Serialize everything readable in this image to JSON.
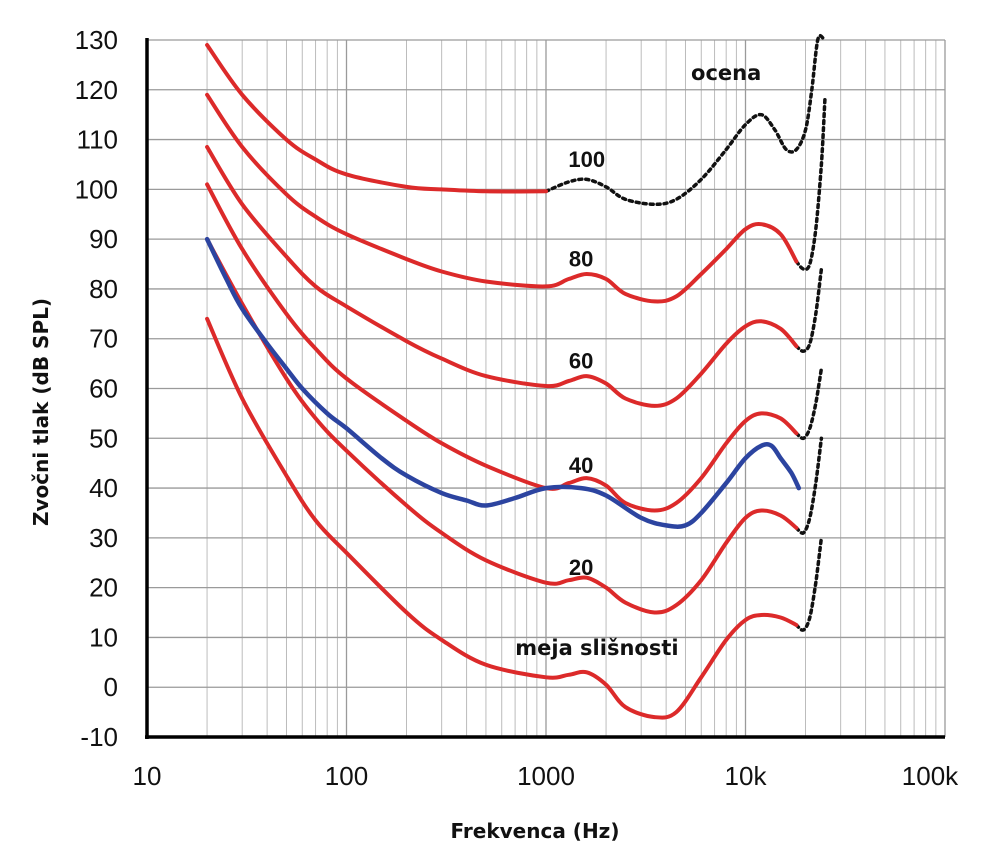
{
  "chart_data": {
    "type": "line",
    "xlabel": "Frekvenca (Hz)",
    "ylabel": "Zvočni tlak (dB SPL)",
    "x_scale": "log",
    "xlim": [
      10,
      100000
    ],
    "ylim": [
      -10,
      130
    ],
    "x_ticks": [
      10,
      100,
      1000,
      10000,
      100000
    ],
    "x_tick_labels": [
      "10",
      "100",
      "1000",
      "10k",
      "100k"
    ],
    "y_ticks": [
      -10,
      0,
      10,
      20,
      30,
      40,
      50,
      60,
      70,
      80,
      90,
      100,
      110,
      120,
      130
    ],
    "y_tick_labels": [
      "-10",
      "0",
      "10",
      "20",
      "30",
      "40",
      "50",
      "60",
      "70",
      "80",
      "90",
      "100",
      "110",
      "120",
      "130"
    ],
    "grid": true,
    "colors": {
      "equal_loudness": "#dc2a2a",
      "measured": "#2c44a0",
      "estimate": "#111111"
    },
    "series": [
      {
        "label": "100",
        "style": "red",
        "x": [
          20,
          30,
          50,
          70,
          100,
          200,
          300,
          500,
          1000
        ],
        "y": [
          129,
          119,
          110,
          106,
          103,
          100.5,
          100,
          99.6,
          99.6
        ]
      },
      {
        "label": "",
        "style": "dotted",
        "x": [
          1000,
          1300,
          1600,
          2000,
          2500,
          3500,
          4500,
          6000,
          8000,
          10000,
          12000,
          14000,
          16000,
          18000,
          20000,
          21500,
          23000,
          24500
        ],
        "y": [
          99.6,
          101.5,
          102,
          100.5,
          98,
          97,
          98,
          102,
          108,
          113,
          115,
          112,
          108,
          108,
          112,
          120,
          130,
          135
        ]
      },
      {
        "label": "80",
        "style": "red",
        "x": [
          20,
          30,
          50,
          70,
          100,
          200,
          300,
          500,
          1000,
          1300,
          1600,
          2000,
          2500,
          3500,
          4500,
          6000,
          8000,
          10000,
          12000,
          15000,
          18000
        ],
        "y": [
          119,
          108.5,
          99,
          94.5,
          91,
          86,
          83.5,
          81.5,
          80.5,
          82,
          83,
          82,
          79,
          77.5,
          78.5,
          83,
          88,
          92,
          93,
          91,
          85.5
        ]
      },
      {
        "label": "",
        "style": "dotted",
        "x": [
          18000,
          19500,
          21000,
          22500,
          24000,
          25000
        ],
        "y": [
          85.5,
          84,
          85,
          92,
          105,
          118
        ]
      },
      {
        "label": "60",
        "style": "red",
        "x": [
          20,
          30,
          50,
          70,
          100,
          200,
          300,
          500,
          1000,
          1300,
          1600,
          2000,
          2500,
          3500,
          4500,
          6000,
          8000,
          10000,
          12000,
          15000,
          18000
        ],
        "y": [
          108.5,
          97,
          86.5,
          80.5,
          76.5,
          69.5,
          66,
          62.5,
          60.5,
          61.5,
          62.5,
          61,
          58,
          56.5,
          58,
          63,
          69,
          72.5,
          73.5,
          72,
          68.5
        ]
      },
      {
        "label": "",
        "style": "dotted",
        "x": [
          18000,
          19500,
          21000,
          22500,
          24000
        ],
        "y": [
          68.5,
          67.5,
          69,
          75,
          84
        ]
      },
      {
        "label": "40",
        "style": "red",
        "x": [
          20,
          30,
          50,
          70,
          100,
          200,
          300,
          500,
          1000,
          1300,
          1600,
          2000,
          2500,
          3500,
          4500,
          6000,
          8000,
          10000,
          12000,
          15000,
          18000
        ],
        "y": [
          101,
          88,
          75,
          68,
          62,
          53.5,
          49,
          44.5,
          40,
          41,
          42,
          40.5,
          37,
          35.5,
          37,
          42,
          49,
          53.5,
          55,
          54,
          51
        ]
      },
      {
        "label": "",
        "style": "dotted",
        "x": [
          18000,
          19500,
          21000,
          22500,
          24000
        ],
        "y": [
          51,
          50,
          52,
          57,
          64
        ]
      },
      {
        "label": "20",
        "style": "red",
        "x": [
          20,
          30,
          50,
          70,
          100,
          200,
          300,
          500,
          1000,
          1300,
          1600,
          2000,
          2500,
          3500,
          4500,
          6000,
          8000,
          10000,
          12000,
          15000,
          18000
        ],
        "y": [
          90,
          77,
          62,
          54,
          47.5,
          36.5,
          31,
          25.5,
          21,
          21.5,
          22,
          20,
          17,
          15,
          16.5,
          21.5,
          29,
          34,
          35.5,
          34.5,
          32
        ]
      },
      {
        "label": "",
        "style": "dotted",
        "x": [
          18000,
          19500,
          21000,
          22500,
          24000
        ],
        "y": [
          32,
          31,
          34,
          41,
          50
        ]
      },
      {
        "label": "meja slišnosti",
        "style": "red",
        "x": [
          20,
          30,
          50,
          70,
          100,
          200,
          300,
          500,
          1000,
          1300,
          1600,
          2000,
          2500,
          3500,
          4500,
          6000,
          8000,
          10000,
          12000,
          15000,
          18000
        ],
        "y": [
          74,
          58,
          42.5,
          33.5,
          27,
          15,
          9.5,
          4.5,
          2,
          2.5,
          3,
          0.5,
          -4,
          -6,
          -5,
          2,
          9.5,
          13.5,
          14.5,
          14,
          12.5
        ]
      },
      {
        "label": "",
        "style": "dotted",
        "x": [
          18000,
          19500,
          21000,
          22500,
          24000
        ],
        "y": [
          12.5,
          11.5,
          14,
          21,
          30
        ]
      },
      {
        "label": "",
        "style": "blue",
        "x": [
          20,
          25,
          30,
          40,
          50,
          60,
          80,
          100,
          150,
          200,
          300,
          400,
          500,
          700,
          1000,
          1500,
          2000,
          3000,
          4000,
          5000,
          6000,
          8000,
          10000,
          12000,
          13500,
          15000,
          17000,
          18500
        ],
        "y": [
          90,
          82,
          76,
          69,
          64,
          60,
          55,
          52,
          46,
          42.5,
          39,
          37.5,
          36.5,
          38,
          40,
          40,
          38.5,
          34,
          32.5,
          32.5,
          35,
          41,
          46,
          48.5,
          48.5,
          46,
          43,
          40
        ]
      }
    ],
    "curve_labels": [
      {
        "text": "100",
        "x": 1600,
        "y": 104.5
      },
      {
        "text": "80",
        "x": 1500,
        "y": 84.5
      },
      {
        "text": "60",
        "x": 1500,
        "y": 64
      },
      {
        "text": "40",
        "x": 1500,
        "y": 43
      },
      {
        "text": "20",
        "x": 1500,
        "y": 22.5
      }
    ],
    "annotations": [
      {
        "text": "ocena",
        "x": 8000,
        "y": 122
      },
      {
        "text": "meja slišnosti",
        "x": 1800,
        "y": 6.5
      }
    ]
  }
}
